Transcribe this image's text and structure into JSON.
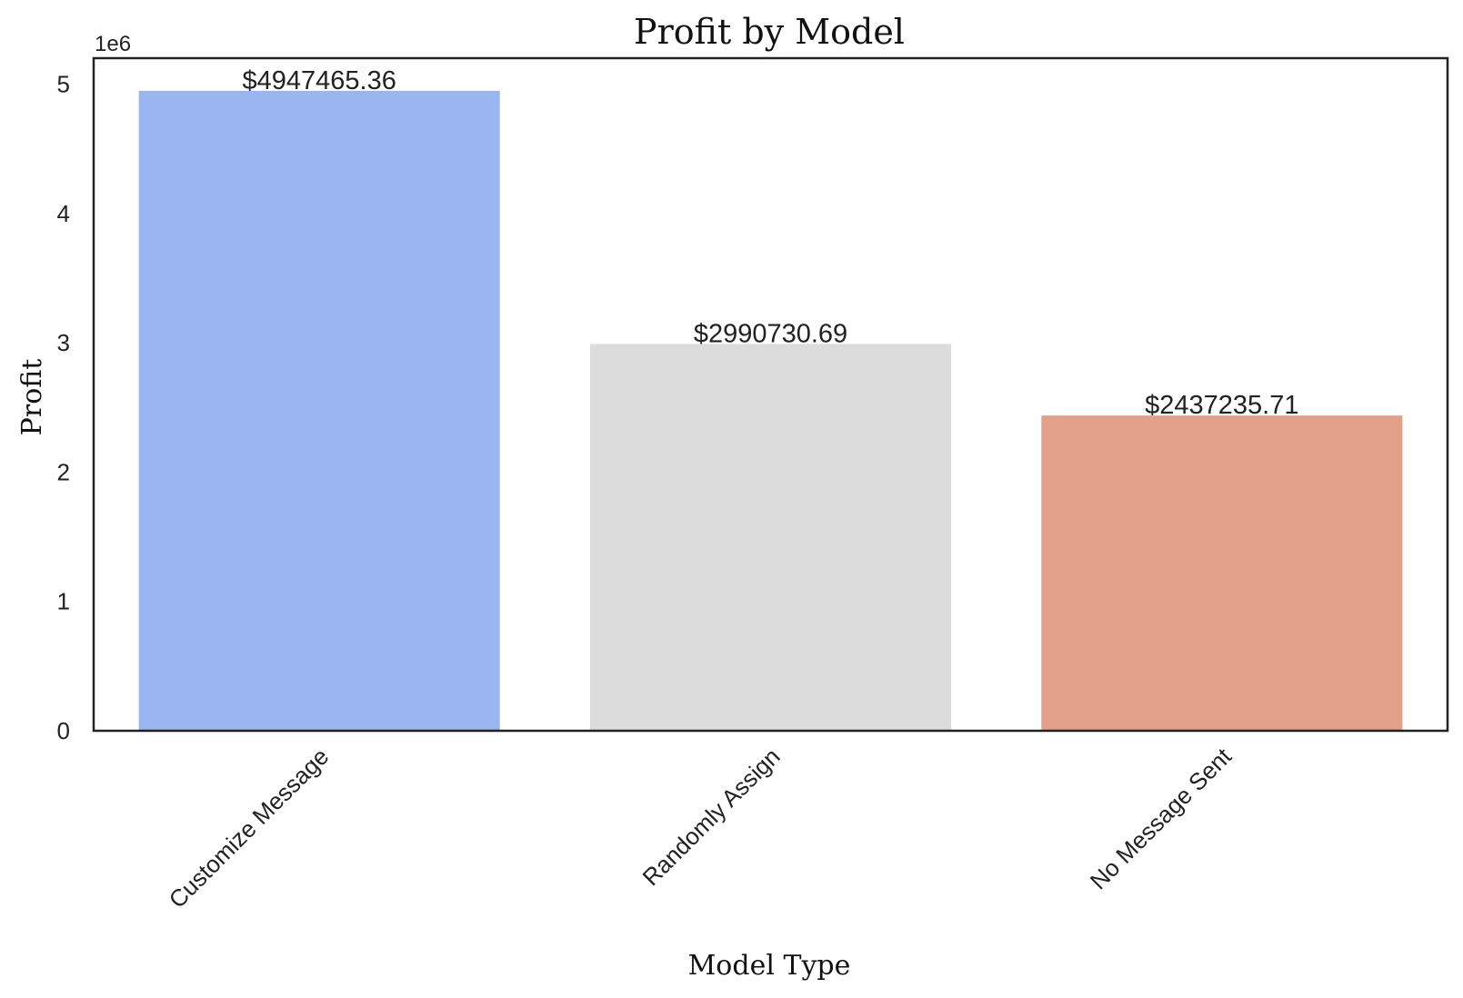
{
  "chart_data": {
    "type": "bar",
    "title": "Profit by Model",
    "xlabel": "Model Type",
    "ylabel": "Profit",
    "y_offset_label": "1e6",
    "ylim": [
      0,
      5.2
    ],
    "yticks": [
      "0",
      "1",
      "2",
      "3",
      "4",
      "5"
    ],
    "categories": [
      "Customize Message",
      "Randomly Assign",
      "No Message Sent"
    ],
    "values": [
      4947465.36,
      2990730.69,
      2437235.71
    ],
    "data_labels": [
      "$4947465.36",
      "$2990730.69",
      "$2437235.71"
    ],
    "colors": [
      "#9ab5ef",
      "#dcdcdc",
      "#e3a08a"
    ],
    "grid": false,
    "legend": "none",
    "xtick_rotation": "45 degrees"
  }
}
